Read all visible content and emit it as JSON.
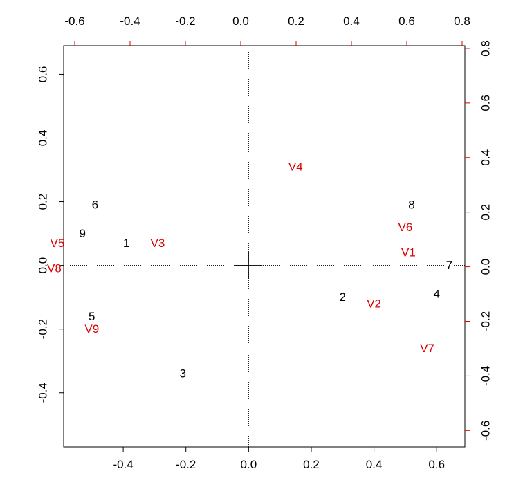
{
  "chart_data": {
    "type": "scatter",
    "subtype": "biplot",
    "title": "",
    "xlabel": "",
    "ylabel": "",
    "colors": {
      "primary": "#000000",
      "secondary": "#dd0000"
    },
    "axes": {
      "bottom": {
        "ticks": [
          -0.4,
          -0.2,
          0.0,
          0.2,
          0.4,
          0.6
        ],
        "labels": [
          "-0.4",
          "-0.2",
          "0.0",
          "0.2",
          "0.4",
          "0.6"
        ]
      },
      "left": {
        "ticks": [
          -0.4,
          -0.2,
          0.0,
          0.2,
          0.4,
          0.6
        ],
        "labels": [
          "-0.4",
          "-0.2",
          "0.0",
          "0.2",
          "0.4",
          "0.6"
        ]
      },
      "top": {
        "ticks": [
          -0.6,
          -0.4,
          -0.2,
          0.0,
          0.2,
          0.4,
          0.6,
          0.8
        ],
        "labels": [
          "-0.6",
          "-0.4",
          "-0.2",
          "0.0",
          "0.2",
          "0.4",
          "0.6",
          "0.8"
        ]
      },
      "right": {
        "ticks": [
          -0.6,
          -0.4,
          -0.2,
          0.0,
          0.2,
          0.4,
          0.6,
          0.8
        ],
        "labels": [
          "-0.6",
          "-0.4",
          "-0.2",
          "0.0",
          "0.2",
          "0.4",
          "0.6",
          "0.8"
        ]
      }
    },
    "primary_xlim": [
      -0.59,
      0.69
    ],
    "primary_ylim": [
      -0.57,
      0.69
    ],
    "secondary_xlim": [
      -0.64,
      0.81
    ],
    "secondary_ylim": [
      -0.66,
      0.81
    ],
    "reference_lines": {
      "x": 0,
      "y": 0,
      "style": "dotted"
    },
    "series": [
      {
        "name": "",
        "role": "observations",
        "points": [
          {
            "label": "1",
            "x": -0.39,
            "y": 0.07
          },
          {
            "label": "2",
            "x": 0.3,
            "y": -0.1
          },
          {
            "label": "3",
            "x": -0.21,
            "y": -0.34
          },
          {
            "label": "4",
            "x": 0.6,
            "y": -0.09
          },
          {
            "label": "5",
            "x": -0.5,
            "y": -0.16
          },
          {
            "label": "6",
            "x": -0.49,
            "y": 0.19
          },
          {
            "label": "7",
            "x": 0.64,
            "y": 0.0
          },
          {
            "label": "8",
            "x": 0.52,
            "y": 0.19
          },
          {
            "label": "9",
            "x": -0.53,
            "y": 0.1
          }
        ]
      },
      {
        "name": "",
        "role": "variables",
        "points": [
          {
            "label": "V1",
            "x": 0.51,
            "y": 0.04
          },
          {
            "label": "V2",
            "x": 0.4,
            "y": -0.12
          },
          {
            "label": "V3",
            "x": -0.29,
            "y": 0.07
          },
          {
            "label": "V4",
            "x": 0.15,
            "y": 0.31
          },
          {
            "label": "V5",
            "x": -0.61,
            "y": 0.07
          },
          {
            "label": "V6",
            "x": 0.5,
            "y": 0.12
          },
          {
            "label": "V7",
            "x": 0.57,
            "y": -0.26
          },
          {
            "label": "V8",
            "x": -0.62,
            "y": -0.01
          },
          {
            "label": "V9",
            "x": -0.5,
            "y": -0.2
          }
        ]
      }
    ]
  }
}
